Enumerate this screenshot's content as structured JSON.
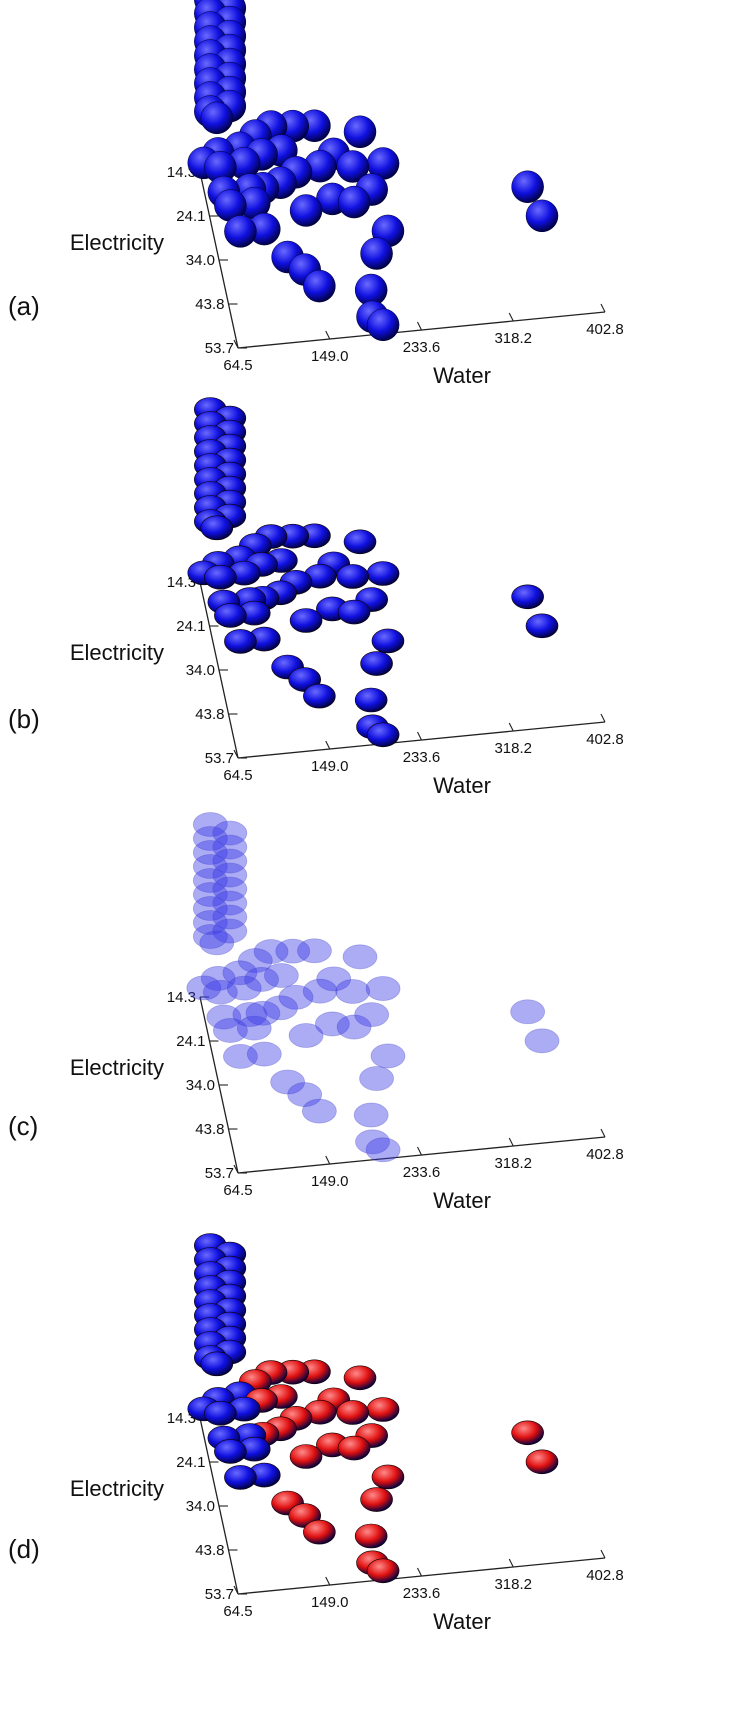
{
  "chart_data": [
    {
      "panel_label": "(a)",
      "type": "scatter",
      "style": "opaque-spheres",
      "x_axis": {
        "label": "Water",
        "ticks": [
          "64.5",
          "149.0",
          "233.6",
          "318.2",
          "402.8"
        ],
        "range": [
          64.5,
          402.8
        ]
      },
      "y_axis": {
        "label": "Electricity",
        "ticks": [
          "14.3",
          "24.1",
          "34.0",
          "43.8",
          "53.7"
        ],
        "range": [
          14.3,
          53.7
        ]
      },
      "point_color": "#1010e0"
    },
    {
      "panel_label": "(b)",
      "type": "scatter",
      "style": "opaque-discs",
      "x_axis": {
        "label": "Water",
        "ticks": [
          "64.5",
          "149.0",
          "233.6",
          "318.2",
          "402.8"
        ],
        "range": [
          64.5,
          402.8
        ]
      },
      "y_axis": {
        "label": "Electricity",
        "ticks": [
          "14.3",
          "24.1",
          "34.0",
          "43.8",
          "53.7"
        ],
        "range": [
          14.3,
          53.7
        ]
      },
      "point_color": "#1010e0"
    },
    {
      "panel_label": "(c)",
      "type": "scatter",
      "style": "translucent-discs",
      "x_axis": {
        "label": "Water",
        "ticks": [
          "64.5",
          "149.0",
          "233.6",
          "318.2",
          "402.8"
        ],
        "range": [
          64.5,
          402.8
        ]
      },
      "y_axis": {
        "label": "Electricity",
        "ticks": [
          "14.3",
          "24.1",
          "34.0",
          "43.8",
          "53.7"
        ],
        "range": [
          14.3,
          53.7
        ]
      },
      "point_color": "#3a3ae8"
    },
    {
      "panel_label": "(d)",
      "type": "scatter",
      "style": "opaque-discs-two-clusters",
      "x_axis": {
        "label": "Water",
        "ticks": [
          "64.5",
          "149.0",
          "233.6",
          "318.2",
          "402.8"
        ],
        "range": [
          64.5,
          402.8
        ]
      },
      "y_axis": {
        "label": "Electricity",
        "ticks": [
          "14.3",
          "24.1",
          "34.0",
          "43.8",
          "53.7"
        ],
        "range": [
          14.3,
          53.7
        ]
      },
      "point_color": "#1010e0",
      "cluster_color": "#e01010"
    }
  ],
  "points": [
    {
      "w": 74,
      "e": 0.0,
      "h": 0.98
    },
    {
      "w": 74,
      "e": 0.0,
      "h": 0.9
    },
    {
      "w": 74,
      "e": 0.0,
      "h": 0.82
    },
    {
      "w": 74,
      "e": 0.0,
      "h": 0.74
    },
    {
      "w": 74,
      "e": 0.0,
      "h": 0.66
    },
    {
      "w": 74,
      "e": 0.0,
      "h": 0.58
    },
    {
      "w": 74,
      "e": 0.0,
      "h": 0.5
    },
    {
      "w": 74,
      "e": 0.0,
      "h": 0.42
    },
    {
      "w": 74,
      "e": 0.0,
      "h": 0.34
    },
    {
      "w": 80,
      "e": 0.0,
      "h": 0.3
    },
    {
      "w": 68,
      "e": 0.0,
      "h": 0.05
    },
    {
      "w": 92,
      "e": 0.0,
      "h": 0.92
    },
    {
      "w": 92,
      "e": 0.0,
      "h": 0.84
    },
    {
      "w": 92,
      "e": 0.0,
      "h": 0.76
    },
    {
      "w": 92,
      "e": 0.0,
      "h": 0.68
    },
    {
      "w": 92,
      "e": 0.0,
      "h": 0.6
    },
    {
      "w": 92,
      "e": 0.0,
      "h": 0.52
    },
    {
      "w": 92,
      "e": 0.0,
      "h": 0.44
    },
    {
      "w": 92,
      "e": 0.0,
      "h": 0.36
    },
    {
      "w": 76,
      "e": 0.15,
      "h": 0.25
    },
    {
      "w": 78,
      "e": 0.15,
      "h": 0.17
    },
    {
      "w": 76,
      "e": 0.3,
      "h": 0.18
    },
    {
      "w": 82,
      "e": 0.3,
      "h": 0.1
    },
    {
      "w": 86,
      "e": 0.45,
      "h": 0.1
    },
    {
      "w": 96,
      "e": 0.15,
      "h": 0.27
    },
    {
      "w": 100,
      "e": 0.15,
      "h": 0.18
    },
    {
      "w": 100,
      "e": 0.3,
      "h": 0.18
    },
    {
      "w": 104,
      "e": 0.3,
      "h": 0.1
    },
    {
      "w": 108,
      "e": 0.45,
      "h": 0.1
    },
    {
      "w": 112,
      "e": 0.1,
      "h": 0.28
    },
    {
      "w": 116,
      "e": 0.15,
      "h": 0.22
    },
    {
      "w": 112,
      "e": 0.3,
      "h": 0.18
    },
    {
      "w": 130,
      "e": 0.0,
      "h": 0.22
    },
    {
      "w": 136,
      "e": 0.1,
      "h": 0.18
    },
    {
      "w": 130,
      "e": 0.25,
      "h": 0.15
    },
    {
      "w": 150,
      "e": 0.0,
      "h": 0.21
    },
    {
      "w": 146,
      "e": 0.2,
      "h": 0.15
    },
    {
      "w": 150,
      "e": 0.35,
      "h": 0.08
    },
    {
      "w": 126,
      "e": 0.55,
      "h": 0.03
    },
    {
      "w": 140,
      "e": 0.6,
      "h": 0.0
    },
    {
      "w": 150,
      "e": 0.7,
      "h": 0.0
    },
    {
      "w": 170,
      "e": 0.0,
      "h": 0.2
    },
    {
      "w": 170,
      "e": 0.15,
      "h": 0.12
    },
    {
      "w": 176,
      "e": 0.3,
      "h": 0.08
    },
    {
      "w": 186,
      "e": 0.05,
      "h": 0.08
    },
    {
      "w": 200,
      "e": 0.15,
      "h": 0.1
    },
    {
      "w": 212,
      "e": 0.0,
      "h": 0.14
    },
    {
      "w": 196,
      "e": 0.3,
      "h": 0.05
    },
    {
      "w": 214,
      "e": 0.25,
      "h": 0.06
    },
    {
      "w": 228,
      "e": 0.15,
      "h": 0.1
    },
    {
      "w": 222,
      "e": 0.45,
      "h": 0.02
    },
    {
      "w": 208,
      "e": 0.55,
      "h": 0.0
    },
    {
      "w": 196,
      "e": 0.75,
      "h": 0.0
    },
    {
      "w": 192,
      "e": 0.9,
      "h": 0.0
    },
    {
      "w": 200,
      "e": 0.95,
      "h": 0.0
    },
    {
      "w": 356,
      "e": 0.3,
      "h": 0.04
    },
    {
      "w": 364,
      "e": 0.45,
      "h": 0.02
    }
  ],
  "cluster_rule": {
    "min_water": 112,
    "exceptions": [
      [
        135,
        0.6
      ]
    ]
  }
}
